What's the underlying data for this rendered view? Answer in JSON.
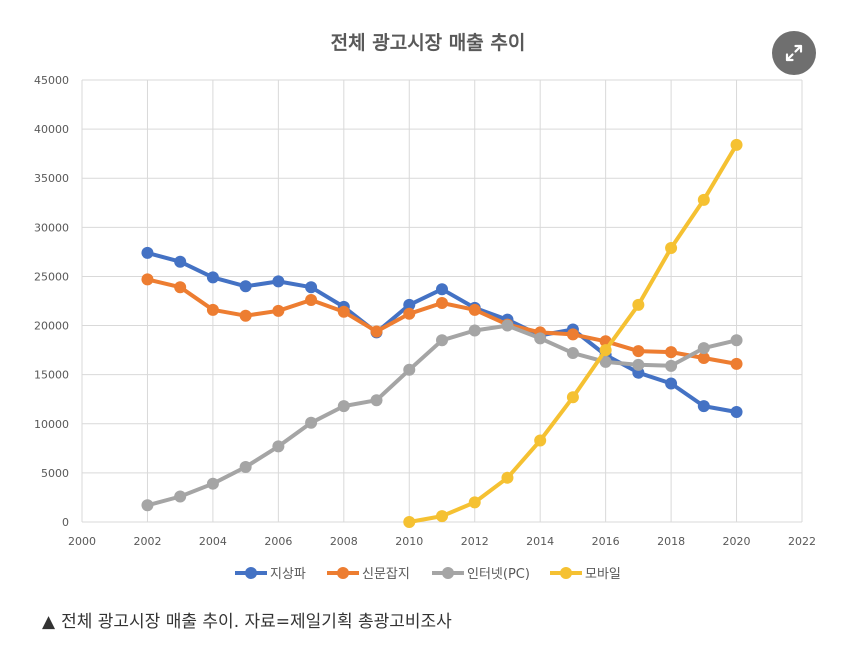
{
  "caption": {
    "marker": "▲",
    "text": "전체 광고시장 매출 추이. 자료=제일기획 총광고비조사"
  },
  "expand_icon": "expand-arrows-icon",
  "colors": {
    "background": "#ffffff",
    "grid": "#d9d9d9",
    "text": "#595959",
    "title": "#595959",
    "expand_button": "#6f6f6f"
  },
  "chart_data": {
    "type": "line",
    "title": "전체 광고시장 매출 추이",
    "xlabel": "",
    "ylabel": "",
    "xlim": [
      2000,
      2022
    ],
    "ylim": [
      0,
      45000
    ],
    "xticks": [
      2000,
      2002,
      2004,
      2006,
      2008,
      2010,
      2012,
      2014,
      2016,
      2018,
      2020,
      2022
    ],
    "yticks": [
      0,
      5000,
      10000,
      15000,
      20000,
      25000,
      30000,
      35000,
      40000,
      45000
    ],
    "grid": true,
    "legend_position": "bottom",
    "series": [
      {
        "name": "지상파",
        "color": "#4472c4",
        "x": [
          2002,
          2003,
          2004,
          2005,
          2006,
          2007,
          2008,
          2009,
          2010,
          2011,
          2012,
          2013,
          2014,
          2015,
          2016,
          2017,
          2018,
          2019,
          2020
        ],
        "values": [
          27400,
          26500,
          24900,
          24000,
          24500,
          23900,
          21900,
          19300,
          22100,
          23700,
          21800,
          20600,
          19000,
          19600,
          17000,
          15200,
          14100,
          11800,
          11200
        ]
      },
      {
        "name": "신문잡지",
        "color": "#ed7d31",
        "x": [
          2002,
          2003,
          2004,
          2005,
          2006,
          2007,
          2008,
          2009,
          2010,
          2011,
          2012,
          2013,
          2014,
          2015,
          2016,
          2017,
          2018,
          2019,
          2020
        ],
        "values": [
          24700,
          23900,
          21600,
          21000,
          21500,
          22600,
          21400,
          19400,
          21200,
          22300,
          21600,
          20100,
          19300,
          19100,
          18400,
          17400,
          17300,
          16700,
          16100
        ]
      },
      {
        "name": "인터넷(PC)",
        "color": "#a5a5a5",
        "x": [
          2002,
          2003,
          2004,
          2005,
          2006,
          2007,
          2008,
          2009,
          2010,
          2011,
          2012,
          2013,
          2014,
          2015,
          2016,
          2017,
          2018,
          2019,
          2020
        ],
        "values": [
          1700,
          2600,
          3900,
          5600,
          7700,
          10100,
          11800,
          12400,
          15500,
          18500,
          19500,
          20000,
          18700,
          17200,
          16300,
          16000,
          15900,
          17700,
          18500
        ]
      },
      {
        "name": "모바일",
        "color": "#f5c132",
        "x": [
          2010,
          2011,
          2012,
          2013,
          2014,
          2015,
          2016,
          2017,
          2018,
          2019,
          2020
        ],
        "values": [
          0,
          600,
          2000,
          4500,
          8300,
          12700,
          17500,
          22100,
          27900,
          32800,
          38400
        ]
      }
    ]
  }
}
